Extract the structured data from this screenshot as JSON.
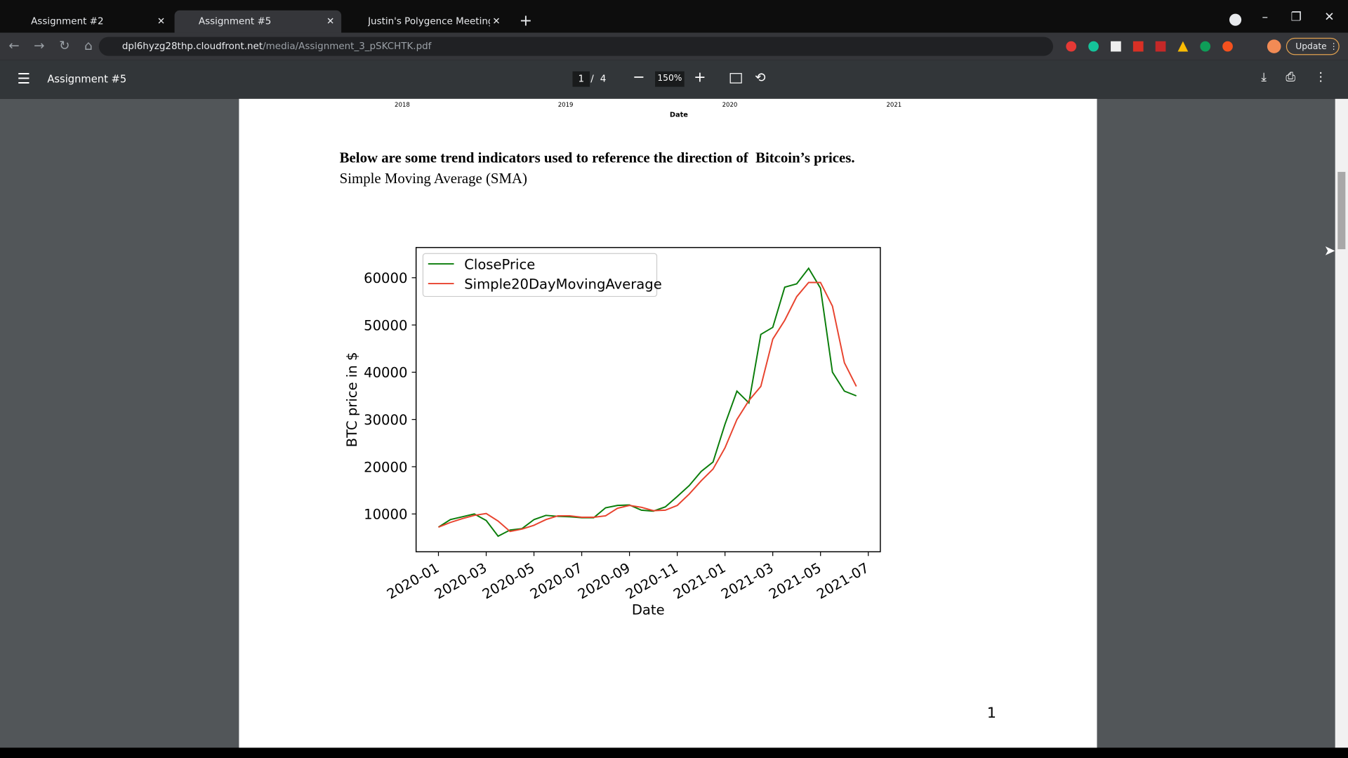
{
  "browser": {
    "tabs": [
      "Assignment #2",
      "Assignment #5",
      "Justin's Polygence Meeting Note"
    ],
    "url_host": "dpl6hyzg28thp.cloudfront.net",
    "url_path": "/media/Assignment_3_pSKCHTK.pdf",
    "update_button": "Update"
  },
  "pdf_viewer": {
    "title": "Assignment #5",
    "current_page": "1",
    "page_separator": "/",
    "page_count": "4",
    "zoom": "150%"
  },
  "document": {
    "previous_chart": {
      "xtick_labels": [
        "2018",
        "2019",
        "2020",
        "2021"
      ],
      "xlabel": "Date"
    },
    "heading": "Below are some trend indicators used to reference the direction of  Bitcoin’s prices.",
    "subheading": "Simple Moving Average (SMA)",
    "page_number": "1"
  },
  "chart_data": {
    "type": "line",
    "xlabel": "Date",
    "ylabel": "BTC price in $",
    "categories": [
      "2020-01",
      null,
      null,
      null,
      "2020-03",
      null,
      null,
      null,
      "2020-05",
      null,
      null,
      null,
      "2020-07",
      null,
      null,
      null,
      "2020-09",
      null,
      null,
      null,
      "2020-11",
      null,
      null,
      null,
      "2021-01",
      null,
      null,
      null,
      "2021-03",
      null,
      null,
      null,
      "2021-05",
      null,
      null,
      null,
      "2021-07"
    ],
    "series": [
      {
        "name": "ClosePrice",
        "color": "#0a7d0a",
        "values": [
          7200,
          8800,
          9400,
          10000,
          8600,
          5300,
          6600,
          6900,
          8800,
          9700,
          9500,
          9400,
          9200,
          9200,
          11300,
          11800,
          11900,
          10800,
          10600,
          11500,
          13700,
          16000,
          19000,
          21000,
          29000,
          36000,
          33500,
          48000,
          49500,
          58000,
          58700,
          62000,
          57800,
          40000,
          36000,
          35000,
          null
        ]
      },
      {
        "name": "Simple20DayMovingAverage",
        "color": "#e8432e",
        "values": [
          7200,
          8200,
          9000,
          9700,
          10100,
          8500,
          6300,
          6800,
          7600,
          8800,
          9600,
          9600,
          9300,
          9300,
          9600,
          11200,
          11800,
          11400,
          10700,
          10800,
          11800,
          14200,
          17000,
          19500,
          24000,
          30000,
          34000,
          37000,
          47000,
          51000,
          56000,
          59000,
          59000,
          54000,
          42000,
          37000,
          null
        ]
      }
    ],
    "ylim": [
      2000,
      66400
    ],
    "yticks": [
      10000,
      20000,
      30000,
      40000,
      50000,
      60000
    ],
    "grid": false,
    "legend": "upper left"
  }
}
